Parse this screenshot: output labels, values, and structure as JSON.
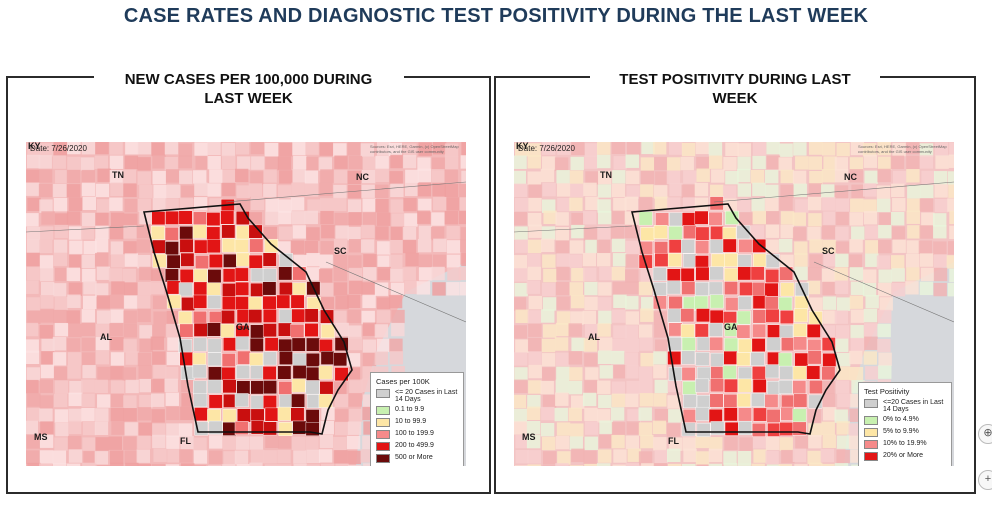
{
  "page": {
    "title": "CASE RATES AND DIAGNOSTIC TEST POSITIVITY DURING THE LAST WEEK"
  },
  "panels": [
    {
      "title": "NEW CASES PER 100,000 DURING LAST WEEK",
      "map": {
        "date_label": "Date: 7/26/2020",
        "credits": "Sources: Esri, HERE, Garmin, (c) OpenStreetMap contributors, and the GIS user community",
        "state_labels": {
          "ky": "KY",
          "tn": "TN",
          "nc": "NC",
          "sc": "SC",
          "al": "AL",
          "ga": "GA",
          "ms": "MS",
          "fl": "FL"
        },
        "legend": {
          "title": "Cases per 100K",
          "items": [
            {
              "label": "<= 20 Cases in Last 14 Days",
              "color": "#cfcfcf"
            },
            {
              "label": "0.1 to 9.9",
              "color": "#c8f0b0"
            },
            {
              "label": "10 to 99.9",
              "color": "#fde6a6"
            },
            {
              "label": "100 to 199.9",
              "color": "#f58a8a"
            },
            {
              "label": "200 to 499.9",
              "color": "#e21515"
            },
            {
              "label": "500 or More",
              "color": "#6b0b0b"
            }
          ]
        }
      }
    },
    {
      "title": "TEST POSITIVITY DURING LAST WEEK",
      "map": {
        "date_label": "Date: 7/26/2020",
        "credits": "Sources: Esri, HERE, Garmin, (c) OpenStreetMap contributors, and the GIS user community",
        "state_labels": {
          "ky": "KY",
          "tn": "TN",
          "nc": "NC",
          "sc": "SC",
          "al": "AL",
          "ga": "GA",
          "ms": "MS",
          "fl": "FL"
        },
        "legend": {
          "title": "Test Positivity",
          "items": [
            {
              "label": "<=20 Cases in Last 14 Days",
              "color": "#cfcfcf"
            },
            {
              "label": "0% to 4.9%",
              "color": "#c8f0b0"
            },
            {
              "label": "5% to 9.9%",
              "color": "#fde6a6"
            },
            {
              "label": "10% to 19.9%",
              "color": "#f58a8a"
            },
            {
              "label": "20% or More",
              "color": "#e21515"
            }
          ]
        }
      }
    }
  ],
  "side_buttons": [
    {
      "icon": "zoom-in-icon",
      "symbol": "⊕"
    },
    {
      "icon": "plus-icon",
      "symbol": "+"
    }
  ]
}
